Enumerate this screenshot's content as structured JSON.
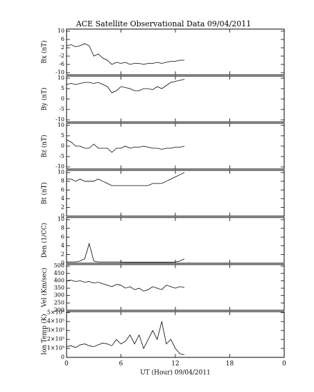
{
  "chart_data": [
    {
      "type": "line",
      "title": "ACE Satellite Observational Data  09/04/2011",
      "ylabel": "Bx (nT)",
      "x": [
        0,
        0.5,
        1,
        1.5,
        2,
        2.5,
        3,
        3.5,
        4,
        4.5,
        5,
        5.5,
        6,
        6.5,
        7,
        7.5,
        8,
        8.5,
        9,
        9.5,
        10,
        10.5,
        11,
        11.5,
        12,
        12.5,
        13
      ],
      "values": [
        3,
        3.5,
        2.5,
        3,
        4,
        3,
        -2,
        -1,
        -3,
        -4,
        -6,
        -5,
        -5.5,
        -5,
        -6,
        -5.5,
        -5.5,
        -6,
        -5.5,
        -5.5,
        -5,
        -5.5,
        -5,
        -4.5,
        -4.5,
        -4,
        -4
      ],
      "xlim": [
        0,
        24
      ],
      "ylim": [
        -11,
        11
      ],
      "yticks": [
        10,
        6,
        2,
        -2,
        -6,
        -10
      ]
    },
    {
      "type": "line",
      "ylabel": "By (nT)",
      "x": [
        0,
        0.5,
        1,
        1.5,
        2,
        2.5,
        3,
        3.5,
        4,
        4.5,
        5,
        5.5,
        6,
        6.5,
        7,
        7.5,
        8,
        8.5,
        9,
        9.5,
        10,
        10.5,
        11,
        11.5,
        12,
        12.5,
        13
      ],
      "values": [
        7,
        7.5,
        7,
        7.5,
        8,
        8,
        7.5,
        8,
        7,
        6,
        3,
        4,
        6,
        5.5,
        5,
        4,
        4,
        5,
        5,
        4.5,
        6,
        5,
        6.5,
        8,
        8.5,
        9,
        9.5
      ],
      "xlim": [
        0,
        24
      ],
      "ylim": [
        -11,
        11
      ],
      "yticks": [
        10,
        5,
        0,
        -5,
        -10
      ]
    },
    {
      "type": "line",
      "ylabel": "Bz (nT)",
      "x": [
        0,
        0.5,
        1,
        1.5,
        2,
        2.5,
        3,
        3.5,
        4,
        4.5,
        5,
        5.5,
        6,
        6.5,
        7,
        7.5,
        8,
        8.5,
        9,
        9.5,
        10,
        10.5,
        11,
        11.5,
        12,
        12.5,
        13
      ],
      "values": [
        3,
        2,
        0,
        0,
        -1,
        -1,
        1,
        -1,
        -1,
        -1,
        -3,
        -1,
        -1,
        0,
        -1,
        -0.5,
        -0.5,
        0,
        -0.5,
        -1,
        -1,
        -1.5,
        -1,
        -1,
        -0.5,
        -0.5,
        0
      ],
      "xlim": [
        0,
        24
      ],
      "ylim": [
        -11,
        11
      ],
      "yticks": [
        10,
        5,
        0,
        -5,
        -10
      ]
    },
    {
      "type": "line",
      "ylabel": "Bt (nT)",
      "x": [
        0,
        0.5,
        1,
        1.5,
        2,
        2.5,
        3,
        3.5,
        4,
        4.5,
        5,
        5.5,
        6,
        6.5,
        7,
        7.5,
        8,
        8.5,
        9,
        9.5,
        10,
        10.5,
        11,
        11.5,
        12,
        12.5,
        13
      ],
      "values": [
        8.5,
        8.5,
        8,
        8.5,
        8,
        8,
        8,
        8.5,
        8,
        7.5,
        7,
        7,
        7,
        7,
        7,
        7,
        7,
        7,
        7,
        7.5,
        7.5,
        7.5,
        8,
        8.5,
        9,
        9.5,
        10
      ],
      "xlim": [
        0,
        24
      ],
      "ylim": [
        0,
        10.5
      ],
      "yticks": [
        10,
        8,
        6,
        4,
        2,
        0
      ]
    },
    {
      "type": "line",
      "ylabel": "Den (1/CC)",
      "x": [
        0,
        0.5,
        1,
        1.5,
        2,
        2.5,
        3,
        3.5,
        4,
        4.5,
        5,
        5.5,
        6,
        6.5,
        7,
        7.5,
        8,
        8.5,
        9,
        9.5,
        10,
        10.5,
        11,
        11.5,
        12,
        12.5,
        13
      ],
      "values": [
        0.3,
        0.3,
        0.3,
        0.5,
        1,
        4.5,
        0.5,
        0.3,
        0.3,
        0.3,
        0.3,
        0.3,
        0.3,
        0.2,
        0.2,
        0.2,
        0.2,
        0.2,
        0.2,
        0.2,
        0.2,
        0.2,
        0.2,
        0.2,
        0.3,
        0.5,
        1
      ],
      "xlim": [
        0,
        24
      ],
      "ylim": [
        0,
        10.5
      ],
      "yticks": [
        10,
        8,
        6,
        4,
        2,
        0
      ]
    },
    {
      "type": "line",
      "ylabel": "Vel (Km/sec)",
      "x": [
        0,
        0.5,
        1,
        1.5,
        2,
        2.5,
        3,
        3.5,
        4,
        4.5,
        5,
        5.5,
        6,
        6.5,
        7,
        7.5,
        8,
        8.5,
        9,
        9.5,
        10,
        10.5,
        11,
        11.5,
        12,
        12.5,
        13
      ],
      "values": [
        400,
        405,
        395,
        400,
        390,
        395,
        385,
        390,
        380,
        370,
        360,
        375,
        370,
        350,
        360,
        340,
        350,
        330,
        340,
        360,
        350,
        340,
        370,
        360,
        350,
        360,
        355
      ],
      "xlim": [
        0,
        24
      ],
      "ylim": [
        200,
        510
      ],
      "yticks": [
        500,
        450,
        400,
        350,
        300,
        250,
        200
      ]
    },
    {
      "type": "line",
      "ylabel": "Ion Temp (K)",
      "xlabel": "UT (Hour)  09/04/2011",
      "x": [
        0,
        0.5,
        1,
        1.5,
        2,
        2.5,
        3,
        3.5,
        4,
        4.5,
        5,
        5.5,
        6,
        6.5,
        7,
        7.5,
        8,
        8.5,
        9,
        9.5,
        10,
        10.5,
        11,
        11.5,
        12,
        12.5,
        13
      ],
      "values": [
        120000,
        130000,
        110000,
        140000,
        150000,
        130000,
        120000,
        140000,
        160000,
        150000,
        130000,
        200000,
        150000,
        180000,
        250000,
        150000,
        250000,
        100000,
        200000,
        300000,
        200000,
        400000,
        150000,
        200000,
        100000,
        40000,
        30000
      ],
      "xlim": [
        0,
        24
      ],
      "ylim": [
        0,
        510000
      ],
      "yticks": [
        {
          "value": 500000,
          "label": "5×10⁵"
        },
        {
          "value": 400000,
          "label": "4×10⁵"
        },
        {
          "value": 300000,
          "label": "3×10⁵"
        },
        {
          "value": 200000,
          "label": "2×10⁵"
        },
        {
          "value": 100000,
          "label": "1×10⁵"
        },
        0
      ],
      "xticks": [
        0,
        6,
        12,
        18,
        {
          "value": 24,
          "label": "0"
        }
      ]
    }
  ]
}
